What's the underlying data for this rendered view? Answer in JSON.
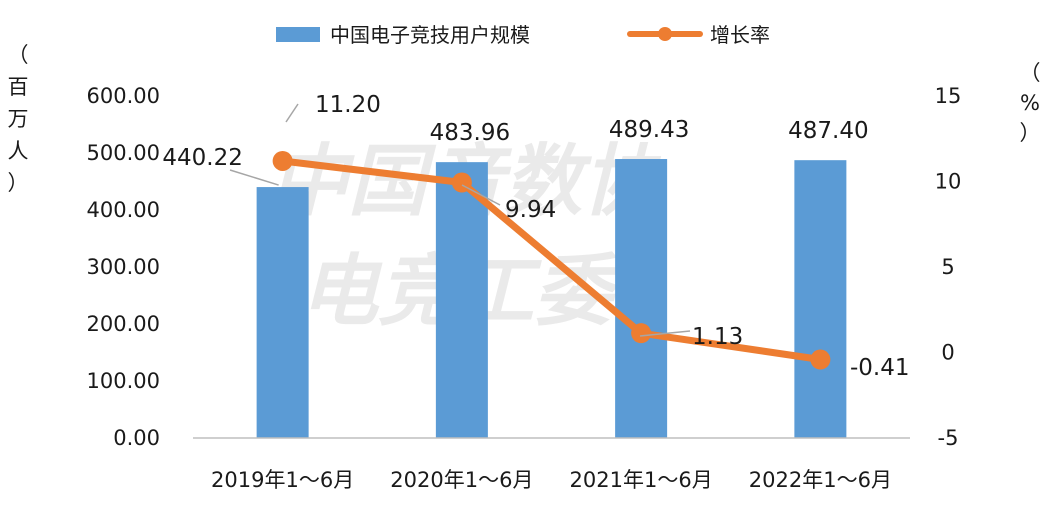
{
  "chart_data": {
    "type": "bar",
    "categories": [
      "2019年1～6月",
      "2020年1～6月",
      "2021年1～6月",
      "2022年1～6月"
    ],
    "series": [
      {
        "name": "中国电子竞技用户规模",
        "type": "bar",
        "axis": "left",
        "values": [
          440.22,
          483.96,
          489.43,
          487.4
        ],
        "labels": [
          "440.22",
          "483.96",
          "489.43",
          "487.40"
        ],
        "color": "#5B9BD5"
      },
      {
        "name": "增长率",
        "type": "line",
        "axis": "right",
        "values": [
          11.2,
          9.94,
          1.13,
          -0.41
        ],
        "labels": [
          "11.20",
          "9.94",
          "1.13",
          "-0.41"
        ],
        "color": "#ED7D31"
      }
    ],
    "y_left": {
      "label_chars": [
        "（",
        "百",
        "万",
        "人",
        "）"
      ],
      "ticks": [
        "0.00",
        "100.00",
        "200.00",
        "300.00",
        "400.00",
        "500.00",
        "600.00"
      ],
      "ylim": [
        0,
        600
      ]
    },
    "y_right": {
      "label_chars": [
        "（",
        "%",
        "）"
      ],
      "ticks": [
        "-5",
        "0",
        "5",
        "10",
        "15"
      ],
      "ylim": [
        -5,
        15
      ]
    },
    "legend_position": "top",
    "grid": false,
    "watermark": [
      "中国音数协",
      "电竞工委"
    ]
  }
}
